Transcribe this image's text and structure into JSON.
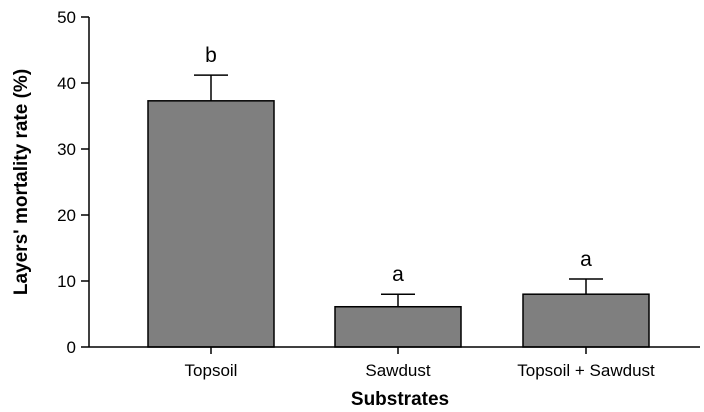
{
  "chart_data": {
    "type": "bar",
    "title": "",
    "xlabel": "Substrates",
    "ylabel": "Layers' mortality rate (%)",
    "ylim": [
      0,
      50
    ],
    "yticks": [
      "0",
      "10",
      "20",
      "30",
      "40",
      "50"
    ],
    "categories": [
      "Topsoil",
      "Sawdust",
      "Topsoil + Sawdust"
    ],
    "values": [
      37.3,
      6.1,
      8.0
    ],
    "errors": [
      3.9,
      1.9,
      2.3
    ],
    "significance_letters": [
      "b",
      "a",
      "a"
    ],
    "bar_color": "#7f7f7f",
    "grid": false,
    "legend": "none"
  }
}
